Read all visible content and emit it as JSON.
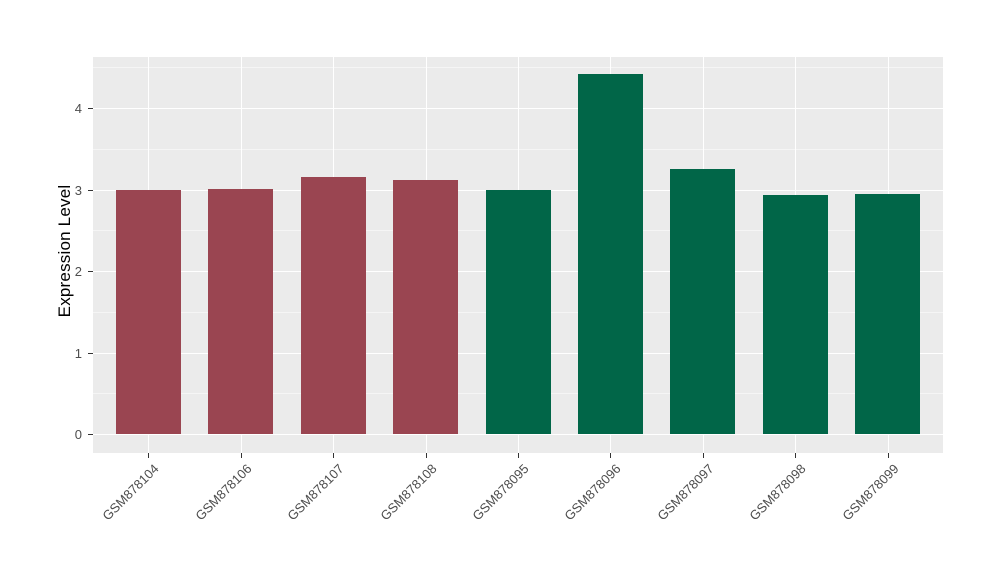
{
  "chart_data": {
    "type": "bar",
    "title": "",
    "xlabel": "",
    "ylabel": "Expression Level",
    "categories": [
      "GSM878104",
      "GSM878106",
      "GSM878107",
      "GSM878108",
      "GSM878095",
      "GSM878096",
      "GSM878097",
      "GSM878098",
      "GSM878099"
    ],
    "values": [
      3.0,
      3.01,
      3.15,
      3.12,
      2.99,
      4.42,
      3.25,
      2.93,
      2.95
    ],
    "bar_colors": [
      "#9A4551",
      "#9A4551",
      "#9A4551",
      "#9A4551",
      "#016648",
      "#016648",
      "#016648",
      "#016648",
      "#016648"
    ],
    "group_colors": {
      "maroon_group": "#9A4551",
      "green_group": "#016648"
    },
    "yticks": [
      0,
      1,
      2,
      3,
      4
    ],
    "minor_yticks": [
      0.5,
      1.5,
      2.5,
      3.5,
      4.5
    ],
    "ylim": [
      -0.23,
      4.63
    ],
    "x_label_rotation": 45,
    "legend": "none",
    "grid": true,
    "style": {
      "panel_bg": "#EBEBEB",
      "grid_major_color": "#FFFFFF",
      "grid_minor_color": "#F5F5F5",
      "axis_text_color": "#4D4D4D",
      "axis_title_color": "#000000",
      "tick_color": "#333333",
      "outer_bg": "#FFFFFF"
    }
  }
}
